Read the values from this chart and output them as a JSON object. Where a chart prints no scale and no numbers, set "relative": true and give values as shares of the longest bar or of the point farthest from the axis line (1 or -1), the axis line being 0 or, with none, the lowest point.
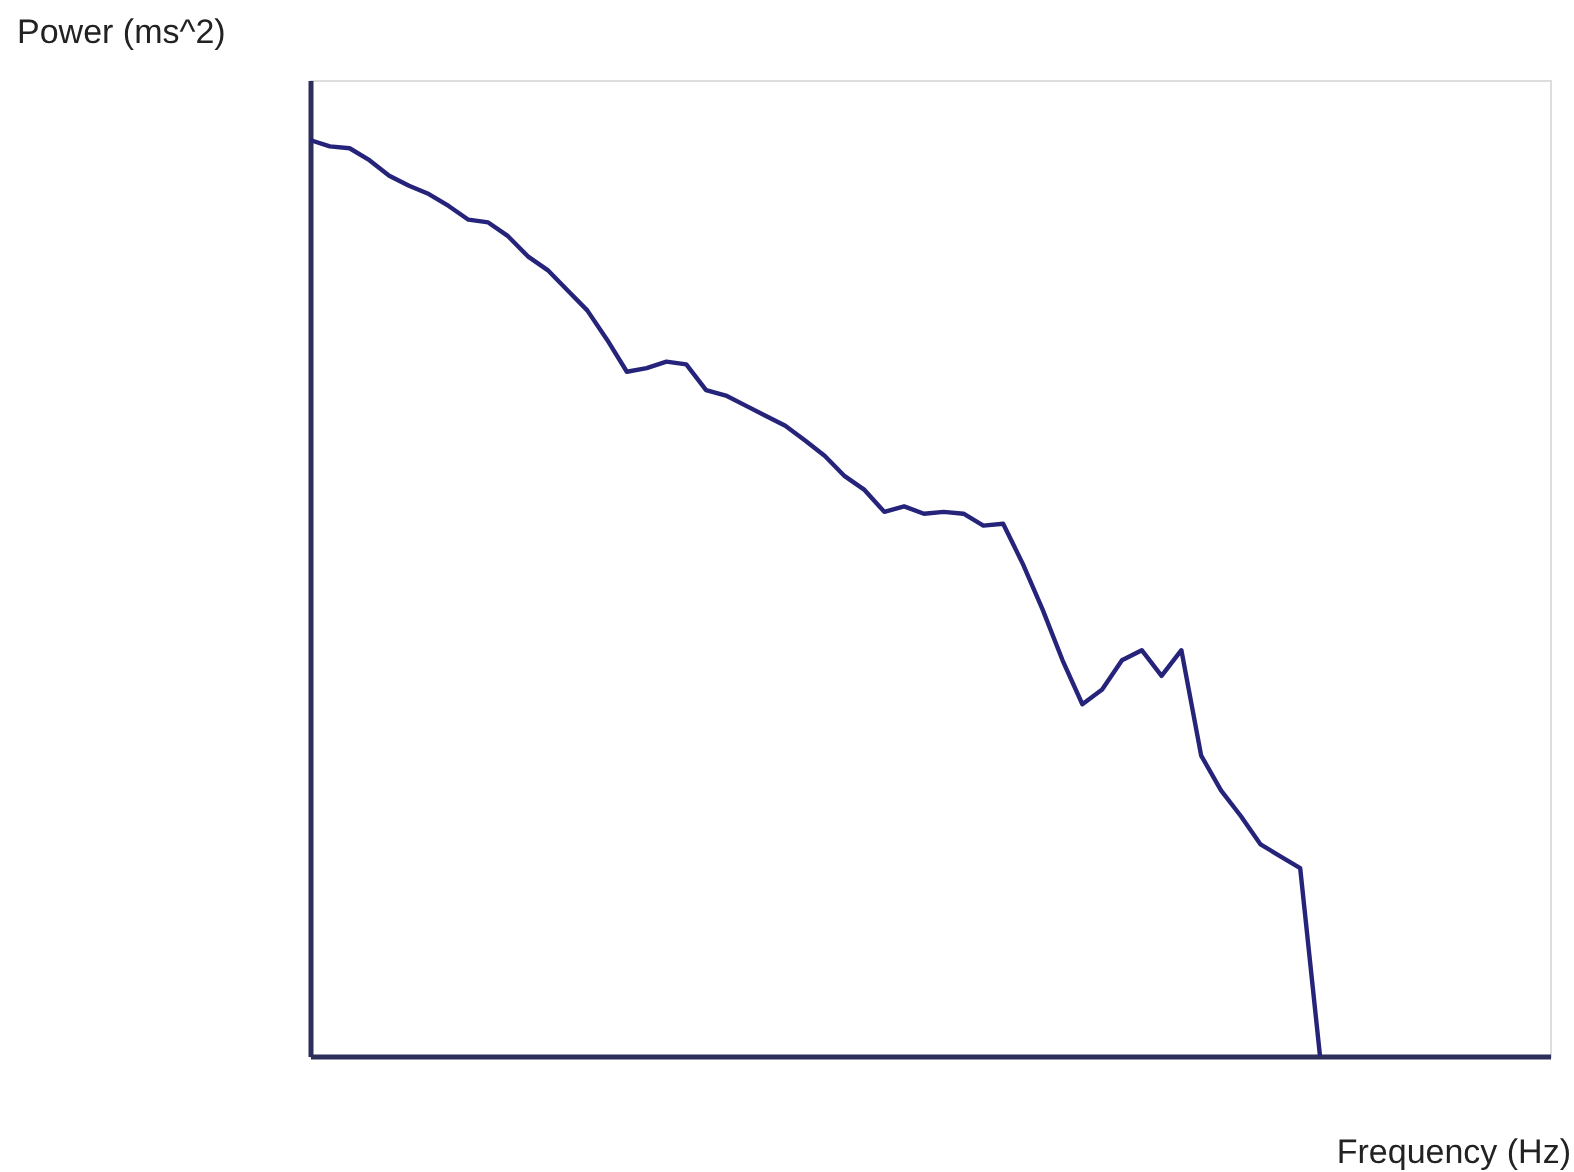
{
  "chart_data": {
    "type": "line",
    "relative": true,
    "xlabel": "Frequency (Hz)",
    "ylabel": "Power (ms^2)",
    "grid": false,
    "tick_labels": false,
    "marker": "none",
    "line_style": "solid",
    "categories": [
      null,
      null,
      null,
      null,
      null,
      null,
      null,
      null,
      null,
      null,
      null,
      null,
      null,
      null,
      null,
      null,
      null,
      null,
      null,
      null,
      null,
      null,
      null,
      null,
      null,
      null,
      null,
      null,
      null,
      null,
      null,
      null,
      null,
      null,
      null,
      null,
      null,
      null,
      null,
      null,
      null,
      null,
      null,
      null,
      null,
      null,
      null,
      null,
      null,
      null,
      null,
      null
    ],
    "series": [
      {
        "color": "#26237a",
        "values": [
          1,
          0.993,
          0.991,
          0.978,
          0.961,
          0.95,
          0.941,
          0.928,
          0.913,
          0.91,
          0.895,
          0.873,
          0.858,
          0.836,
          0.814,
          0.782,
          0.747,
          0.751,
          0.758,
          0.755,
          0.727,
          0.721,
          0.71,
          0.699,
          0.688,
          0.672,
          0.655,
          0.633,
          0.618,
          0.594,
          0.6,
          0.592,
          0.594,
          0.592,
          0.579,
          0.581,
          0.537,
          0.487,
          0.432,
          0.384,
          0.4,
          0.432,
          0.443,
          0.415,
          0.443,
          0.328,
          0.29,
          0.262,
          0.231,
          0.218,
          0.205,
          0
        ]
      }
    ]
  }
}
